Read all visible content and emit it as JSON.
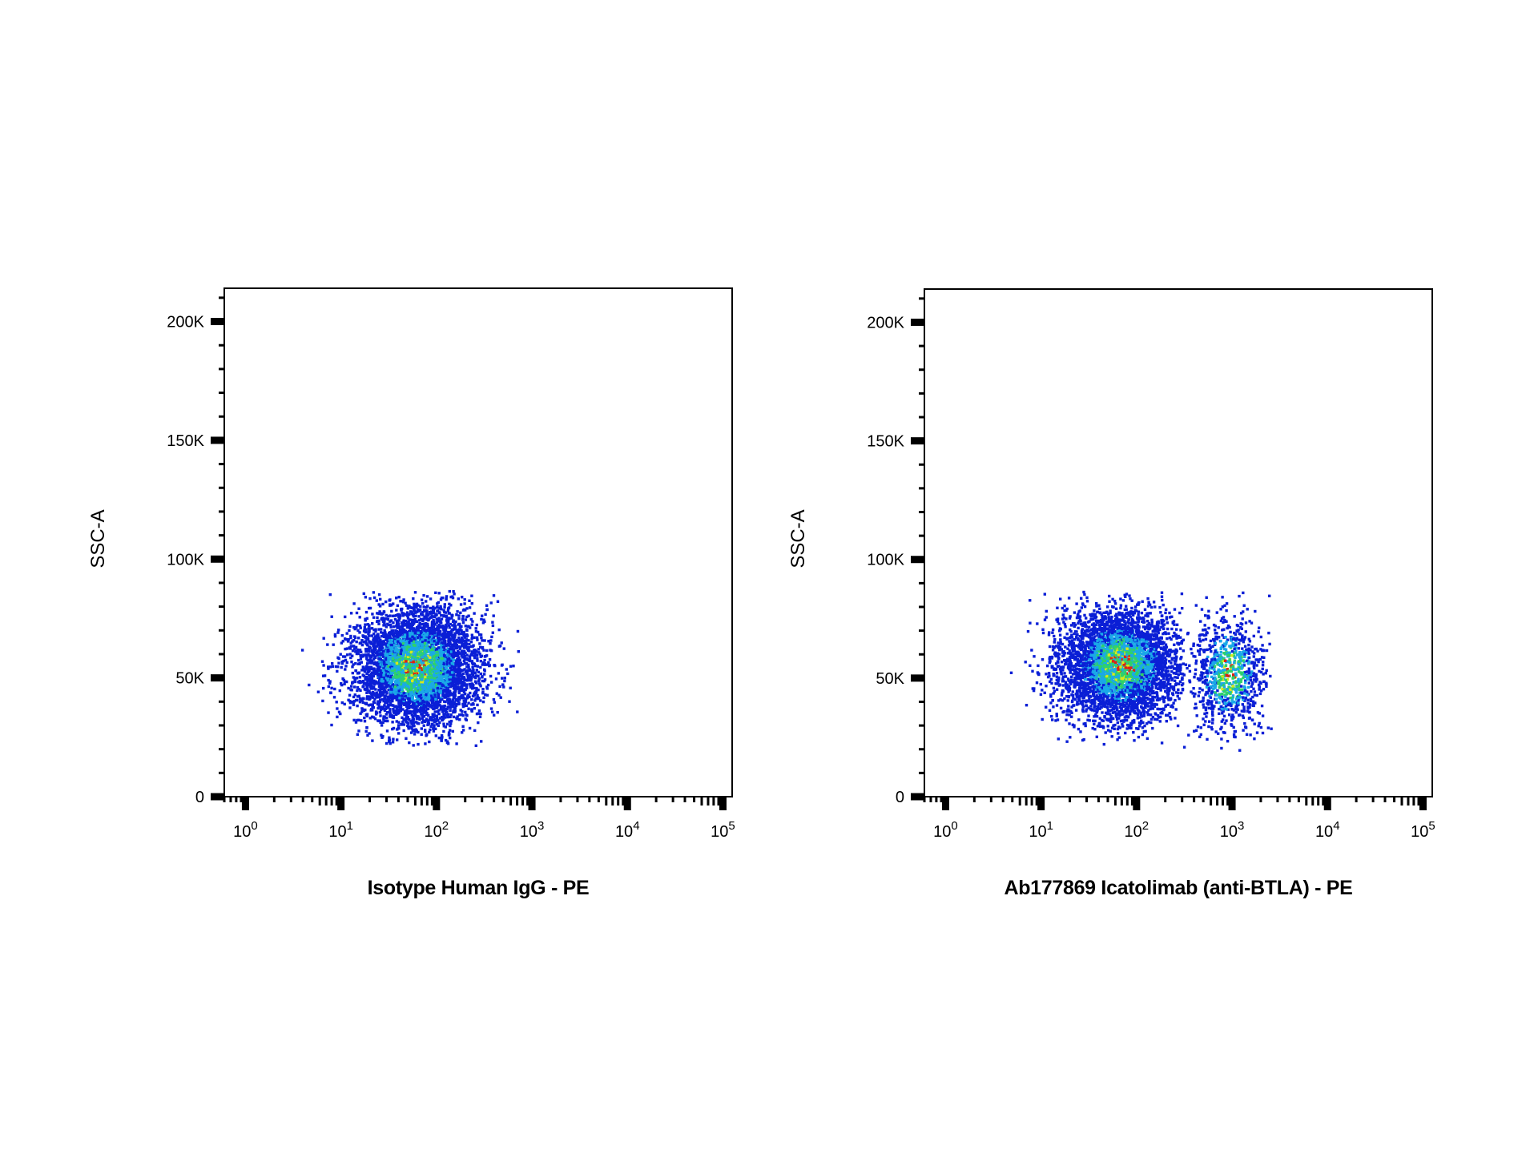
{
  "chart_data": [
    {
      "type": "scatter",
      "title": "",
      "xlabel": "Isotype Human IgG - PE",
      "ylabel": "SSC-A",
      "x_scale": "log",
      "xlim": [
        0.6,
        125000
      ],
      "ylim": [
        0,
        214000
      ],
      "x_ticks": [
        {
          "value": 1,
          "base": "10",
          "exp": "0"
        },
        {
          "value": 10,
          "base": "10",
          "exp": "1"
        },
        {
          "value": 100,
          "base": "10",
          "exp": "2"
        },
        {
          "value": 1000,
          "base": "10",
          "exp": "3"
        },
        {
          "value": 10000,
          "base": "10",
          "exp": "4"
        },
        {
          "value": 100000,
          "base": "10",
          "exp": "5"
        }
      ],
      "y_ticks": [
        {
          "value": 0,
          "label": "0"
        },
        {
          "value": 50000,
          "label": "50K"
        },
        {
          "value": 100000,
          "label": "100K"
        },
        {
          "value": 150000,
          "label": "150K"
        },
        {
          "value": 200000,
          "label": "200K"
        }
      ],
      "grid": false,
      "density_coloring": true,
      "populations": [
        {
          "center_x": 60,
          "center_y": 55000,
          "spread_log10_x": 0.33,
          "spread_y": 12500,
          "x_range": [
            3,
            700
          ],
          "y_range": [
            22000,
            87000
          ],
          "events": 5200
        }
      ]
    },
    {
      "type": "scatter",
      "title": "",
      "xlabel": "Ab177869 Icatolimab (anti-BTLA) - PE",
      "ylabel": "SSC-A",
      "x_scale": "log",
      "xlim": [
        0.6,
        125000
      ],
      "ylim": [
        0,
        214000
      ],
      "x_ticks": [
        {
          "value": 1,
          "base": "10",
          "exp": "0"
        },
        {
          "value": 10,
          "base": "10",
          "exp": "1"
        },
        {
          "value": 100,
          "base": "10",
          "exp": "2"
        },
        {
          "value": 1000,
          "base": "10",
          "exp": "3"
        },
        {
          "value": 10000,
          "base": "10",
          "exp": "4"
        },
        {
          "value": 100000,
          "base": "10",
          "exp": "5"
        }
      ],
      "y_ticks": [
        {
          "value": 0,
          "label": "0"
        },
        {
          "value": 50000,
          "label": "50K"
        },
        {
          "value": 100000,
          "label": "100K"
        },
        {
          "value": 150000,
          "label": "150K"
        },
        {
          "value": 200000,
          "label": "200K"
        }
      ],
      "grid": false,
      "density_coloring": true,
      "populations": [
        {
          "center_x": 65,
          "center_y": 56000,
          "spread_log10_x": 0.32,
          "spread_y": 12000,
          "x_range": [
            2.5,
            300
          ],
          "y_range": [
            22000,
            87000
          ],
          "events": 4300
        },
        {
          "center_x": 900,
          "center_y": 52000,
          "spread_log10_x": 0.2,
          "spread_y": 13000,
          "x_range": [
            300,
            2500
          ],
          "y_range": [
            20000,
            87000
          ],
          "events": 900
        }
      ]
    }
  ],
  "colors": {
    "density_low": "#0a1fd6",
    "density_mid_low": "#1aa8e8",
    "density_mid": "#2fd16a",
    "density_mid_high": "#d8e81c",
    "density_high": "#e02010",
    "axis": "#000000"
  }
}
